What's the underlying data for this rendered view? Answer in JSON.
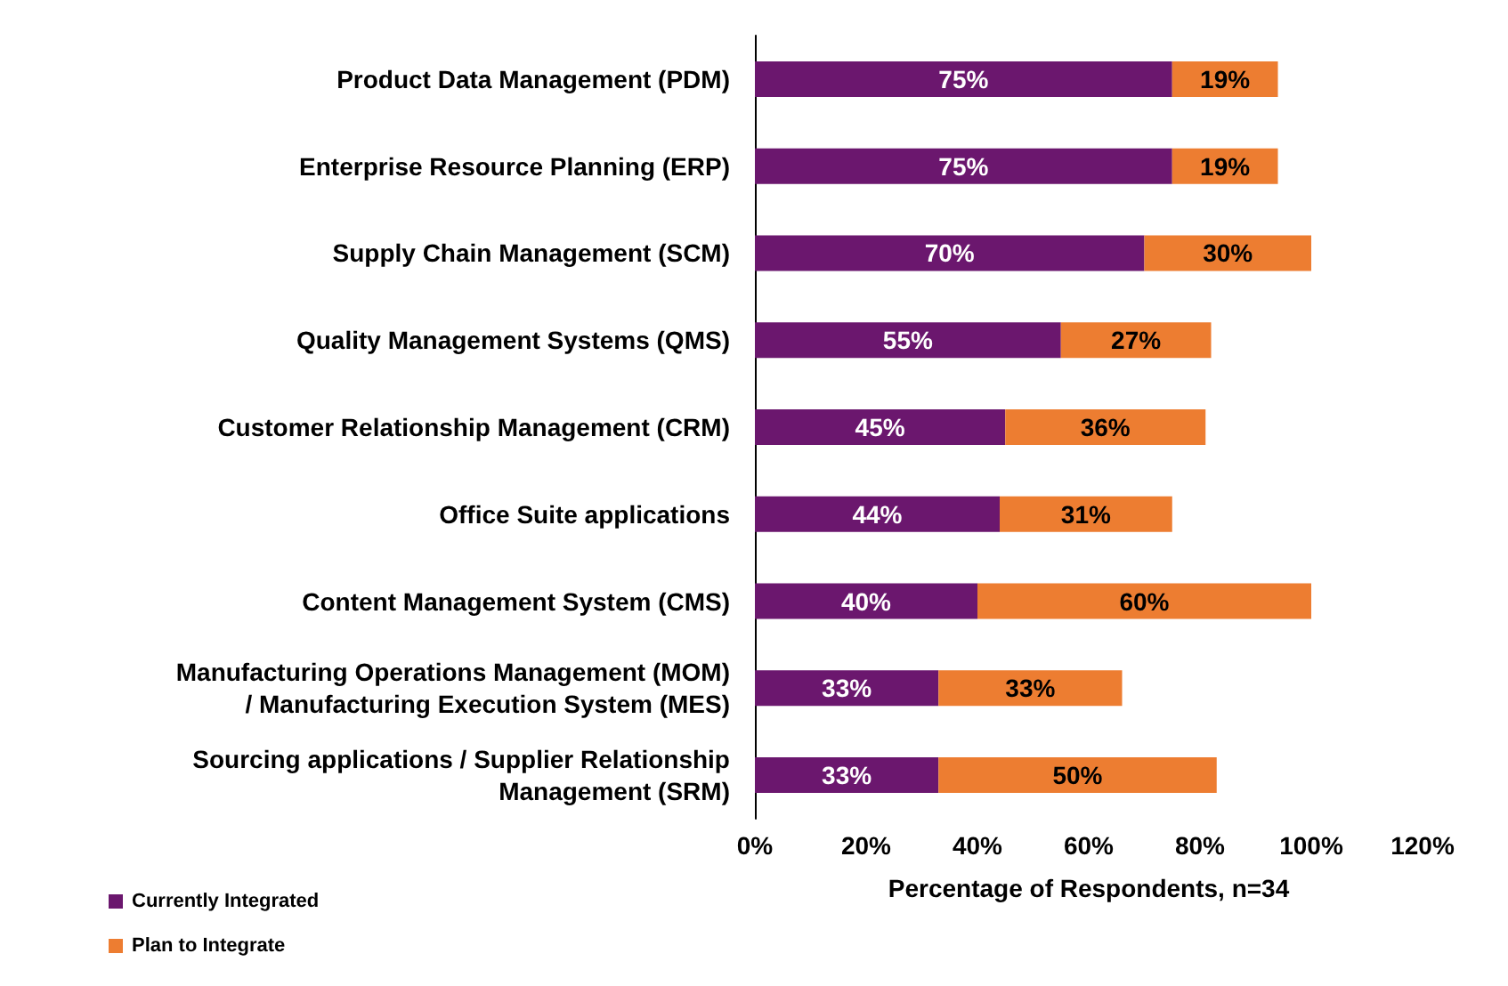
{
  "chart_data": {
    "type": "bar",
    "orientation": "horizontal",
    "stacked": true,
    "xlabel": "Percentage of Respondents, n=34",
    "categories": [
      "Product Data Management (PDM)",
      "Enterprise Resource Planning (ERP)",
      "Supply Chain Management (SCM)",
      "Quality Management Systems (QMS)",
      "Customer Relationship Management (CRM)",
      "Office Suite applications",
      "Content Management System (CMS)",
      "Manufacturing Operations Management (MOM)\n/ Manufacturing Execution System (MES)",
      "Sourcing applications / Supplier Relationship\nManagement (SRM)"
    ],
    "series": [
      {
        "name": "Currently Integrated",
        "color": "#6b176e",
        "values": [
          75,
          75,
          70,
          55,
          45,
          44,
          40,
          33,
          33
        ],
        "value_labels": [
          "75%",
          "75%",
          "70%",
          "55%",
          "45%",
          "44%",
          "40%",
          "33%",
          "33%"
        ]
      },
      {
        "name": "Plan to Integrate",
        "color": "#ed7d31",
        "values": [
          19,
          19,
          30,
          27,
          36,
          31,
          60,
          33,
          50
        ],
        "value_labels": [
          "19%",
          "19%",
          "30%",
          "27%",
          "36%",
          "31%",
          "60%",
          "33%",
          "50%"
        ]
      }
    ],
    "xlim": [
      0,
      120
    ],
    "xticks": [
      {
        "value": 0,
        "label": "0%"
      },
      {
        "value": 20,
        "label": "20%"
      },
      {
        "value": 40,
        "label": "40%"
      },
      {
        "value": 60,
        "label": "60%"
      },
      {
        "value": 80,
        "label": "80%"
      },
      {
        "value": 100,
        "label": "100%"
      },
      {
        "value": 120,
        "label": "120%"
      }
    ],
    "grid": false,
    "legend": "bottom left"
  }
}
